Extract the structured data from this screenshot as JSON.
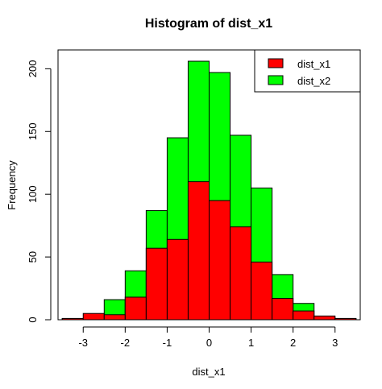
{
  "chart_data": {
    "type": "bar",
    "title": "Histogram of dist_x1",
    "xlabel": "dist_x1",
    "ylabel": "Frequency",
    "xlim": [
      -3.6,
      3.6
    ],
    "ylim": [
      0,
      215
    ],
    "x_ticks": [
      -3,
      -2,
      -1,
      0,
      1,
      2,
      3
    ],
    "y_ticks": [
      0,
      50,
      100,
      150,
      200
    ],
    "bin_edges": [
      -3.5,
      -3.0,
      -2.5,
      -2.0,
      -1.5,
      -1.0,
      -0.5,
      0.0,
      0.5,
      1.0,
      1.5,
      2.0,
      2.5,
      3.0,
      3.5
    ],
    "series": [
      {
        "name": "dist_x1",
        "color": "#ff0000",
        "values": [
          1,
          5,
          4,
          18,
          57,
          64,
          110,
          95,
          74,
          46,
          17,
          7,
          3,
          1
        ]
      },
      {
        "name": "dist_x2",
        "color": "#00ff00",
        "values": [
          1,
          1,
          16,
          39,
          87,
          145,
          206,
          197,
          147,
          105,
          36,
          13,
          2,
          1
        ]
      }
    ],
    "legend_position": "top-right",
    "grid": false
  }
}
